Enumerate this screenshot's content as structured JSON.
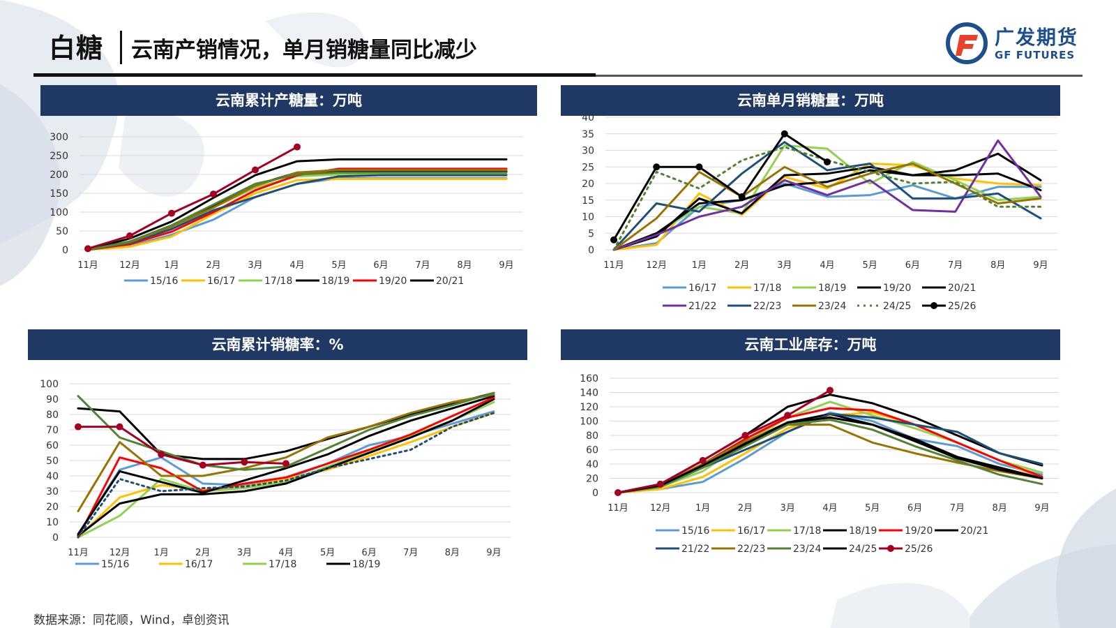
{
  "header": {
    "title": "白糖",
    "subtitle": "云南产销情况，单月销糖量同比减少",
    "logo_cn": "广发期货",
    "logo_en": "GF FUTURES"
  },
  "source": "数据来源：同花顺，Wind，卓创资讯",
  "colors": {
    "header_bg": "#1f3864",
    "s1516": "#5b9bd5",
    "s1617": "#ffc000",
    "s1718": "#92d050",
    "s1819": "#000000",
    "s1920": "#ff0000",
    "s2021": "#000000",
    "s2122": "#7030a0",
    "s2223": "#1f4e79",
    "s2324": "#997300",
    "s2425": "#548235",
    "s2526": "#a50021",
    "s2324_inv": "#548235"
  },
  "chart_data": [
    {
      "id": "production",
      "title": "云南累计产糖量：万吨",
      "type": "line",
      "categories": [
        "11月",
        "12月",
        "1月",
        "2月",
        "3月",
        "4月",
        "5月",
        "6月",
        "7月",
        "8月",
        "9月"
      ],
      "ylim": [
        0,
        300
      ],
      "yticks": [
        0,
        50,
        100,
        150,
        200,
        250,
        300
      ],
      "legend_rows": [
        [
          "15/16",
          "16/17",
          "17/18",
          "18/19",
          "19/20",
          "20/21"
        ]
      ],
      "series": [
        {
          "name": "15/16",
          "color": "#5b9bd5",
          "width": 3,
          "values": [
            0,
            10,
            40,
            80,
            140,
            175,
            190,
            190,
            190,
            190,
            190
          ]
        },
        {
          "name": "16/17",
          "color": "#ffc000",
          "width": 3,
          "values": [
            0,
            8,
            35,
            95,
            150,
            185,
            188,
            188,
            188,
            188,
            188
          ]
        },
        {
          "name": "17/18",
          "color": "#92d050",
          "width": 3,
          "values": [
            0,
            22,
            60,
            112,
            165,
            195,
            200,
            200,
            200,
            200,
            200
          ]
        },
        {
          "name": "18/19",
          "color": "#000000",
          "width": 3,
          "values": [
            0,
            20,
            62,
            115,
            172,
            205,
            208,
            208,
            208,
            208,
            208
          ]
        },
        {
          "name": "19/20",
          "color": "#ff0000",
          "width": 3,
          "values": [
            0,
            15,
            48,
            100,
            158,
            198,
            215,
            215,
            215,
            215,
            215
          ]
        },
        {
          "name": "20/21",
          "color": "#000000",
          "width": 3,
          "values": [
            0,
            30,
            75,
            138,
            198,
            235,
            240,
            240,
            240,
            240,
            240
          ]
        },
        {
          "name": "",
          "color": "#1f4e79",
          "width": 3,
          "values": [
            0,
            18,
            55,
            105,
            140,
            175,
            195,
            198,
            198,
            198,
            198
          ]
        },
        {
          "name": "",
          "color": "#997300",
          "width": 3,
          "values": [
            0,
            20,
            62,
            112,
            170,
            205,
            212,
            212,
            212,
            212,
            212
          ]
        },
        {
          "name": "",
          "color": "#548235",
          "width": 3,
          "values": [
            0,
            22,
            65,
            120,
            175,
            200,
            205,
            205,
            205,
            205,
            205
          ]
        },
        {
          "name": "",
          "color": "#a50021",
          "width": 3,
          "marker": true,
          "values": [
            3,
            37,
            97,
            148,
            212,
            273,
            null,
            null,
            null,
            null,
            null
          ]
        }
      ]
    },
    {
      "id": "monthly-sales",
      "title": "云南单月销糖量：万吨",
      "type": "line",
      "categories": [
        "11月",
        "12月",
        "1月",
        "2月",
        "3月",
        "4月",
        "5月",
        "6月",
        "7月",
        "8月",
        "9月"
      ],
      "ylim": [
        0,
        40
      ],
      "yticks": [
        0,
        5,
        10,
        15,
        20,
        25,
        30,
        35,
        40
      ],
      "legend_rows": [
        [
          "16/17",
          "17/18",
          "18/19",
          "19/20",
          "20/21"
        ],
        [
          "21/22",
          "22/23",
          "23/24",
          "24/25",
          "25/26"
        ]
      ],
      "series": [
        {
          "name": "16/17",
          "color": "#5b9bd5",
          "width": 3,
          "values": [
            0,
            2,
            13,
            15,
            20,
            16,
            16.5,
            19.5,
            15.5,
            19,
            19
          ]
        },
        {
          "name": "17/18",
          "color": "#ffc000",
          "width": 3,
          "values": [
            0,
            1.5,
            17,
            10.5,
            22,
            18.5,
            26,
            25.5,
            21.5,
            20,
            19.5
          ]
        },
        {
          "name": "18/19",
          "color": "#92d050",
          "width": 3,
          "values": [
            0,
            5,
            13,
            11,
            31.5,
            30.5,
            20,
            26.5,
            21,
            15,
            16
          ]
        },
        {
          "name": "19/20",
          "color": "#000000",
          "width": 3,
          "values": [
            0,
            4,
            15.5,
            11,
            22.5,
            23,
            25,
            22.5,
            22.5,
            23,
            18
          ]
        },
        {
          "name": "20/21",
          "color": "#000000",
          "width": 3,
          "values": [
            0,
            5,
            14,
            15,
            19.5,
            20.5,
            24,
            22.5,
            24,
            29,
            21
          ]
        },
        {
          "name": "21/22",
          "color": "#7030a0",
          "width": 3,
          "values": [
            0,
            4.5,
            10,
            13,
            21,
            16.5,
            21,
            12,
            11.5,
            33,
            16
          ]
        },
        {
          "name": "22/23",
          "color": "#1f4e79",
          "width": 3,
          "values": [
            0,
            14,
            11.5,
            23,
            32.5,
            24,
            26,
            15.5,
            15.5,
            17,
            9.5
          ]
        },
        {
          "name": "23/24",
          "color": "#997300",
          "width": 3,
          "values": [
            0,
            9.5,
            23.5,
            16,
            25,
            19,
            23,
            26,
            20,
            14,
            15.5
          ]
        },
        {
          "name": "24/25",
          "color": "#548235",
          "width": 3,
          "dash": "3,6",
          "values": [
            0,
            23.5,
            18.5,
            27,
            31,
            27,
            23.5,
            20,
            20.5,
            13,
            13
          ]
        },
        {
          "name": "25/26",
          "color": "#000000",
          "width": 3,
          "marker": true,
          "values": [
            3,
            25,
            25,
            16,
            35,
            26.5,
            null,
            null,
            null,
            null,
            null
          ]
        }
      ]
    },
    {
      "id": "sales-rate",
      "title": "云南累计销糖率：%",
      "type": "line",
      "categories": [
        "11月",
        "12月",
        "1月",
        "2月",
        "3月",
        "4月",
        "5月",
        "6月",
        "7月",
        "8月",
        "9月"
      ],
      "ylim": [
        0,
        100
      ],
      "yticks": [
        0,
        10,
        20,
        30,
        40,
        50,
        60,
        70,
        80,
        90,
        100
      ],
      "legend_rows": [
        [
          "15/16",
          "16/17",
          "17/18",
          "18/19"
        ]
      ],
      "series": [
        {
          "name": "15/16",
          "color": "#5b9bd5",
          "width": 3,
          "values": [
            2,
            44,
            52,
            35,
            34,
            38,
            48,
            60,
            66,
            74,
            82
          ]
        },
        {
          "name": "16/17",
          "color": "#ffc000",
          "width": 3,
          "values": [
            0,
            26,
            34,
            31,
            33,
            38,
            44,
            53,
            62,
            72,
            81
          ]
        },
        {
          "name": "17/18",
          "color": "#92d050",
          "width": 3,
          "values": [
            0,
            14,
            38,
            30,
            32,
            36,
            46,
            56,
            66,
            76,
            88
          ]
        },
        {
          "name": "18/19",
          "color": "#000000",
          "width": 3,
          "values": [
            1,
            22,
            28,
            28,
            30,
            35,
            45,
            55,
            65,
            76,
            90
          ]
        },
        {
          "name": "",
          "color": "#ff0000",
          "width": 3,
          "values": [
            0,
            52,
            45,
            30,
            35,
            39,
            48,
            57,
            67,
            79,
            91
          ]
        },
        {
          "name": "",
          "color": "#000000",
          "width": 3,
          "values": [
            84,
            82,
            54,
            51,
            51,
            56,
            64,
            72,
            80,
            87,
            94
          ]
        },
        {
          "name": "",
          "color": "#000000",
          "width": 3,
          "values": [
            2,
            43,
            36,
            29,
            37,
            45,
            54,
            66,
            76,
            84,
            92
          ]
        },
        {
          "name": "",
          "color": "#997300",
          "width": 3,
          "values": [
            17,
            62,
            40,
            40,
            45,
            52,
            65,
            72,
            81,
            88,
            93
          ]
        },
        {
          "name": "",
          "color": "#548235",
          "width": 3,
          "values": [
            92,
            65,
            56,
            47,
            44,
            46,
            58,
            70,
            79,
            86,
            94
          ]
        },
        {
          "name": "",
          "color": "#1f4e79",
          "width": 3,
          "dash": "3,5",
          "values": [
            0,
            38,
            30,
            32,
            33,
            37,
            45,
            51,
            57,
            72,
            81
          ]
        },
        {
          "name": "",
          "color": "#a50021",
          "width": 3,
          "marker": true,
          "values": [
            72,
            72,
            54,
            47,
            49,
            48,
            null,
            null,
            null,
            null,
            null
          ]
        }
      ]
    },
    {
      "id": "inventory",
      "title": "云南工业库存：万吨",
      "type": "line",
      "categories": [
        "11月",
        "12月",
        "1月",
        "2月",
        "3月",
        "4月",
        "5月",
        "6月",
        "7月",
        "8月",
        "9月"
      ],
      "ylim": [
        0,
        160
      ],
      "yticks": [
        0,
        20,
        40,
        60,
        80,
        100,
        120,
        140,
        160
      ],
      "legend_rows": [
        [
          "15/16",
          "16/17",
          "17/18",
          "18/19",
          "19/20",
          "20/21"
        ],
        [
          "21/22",
          "22/23",
          "23/24",
          "24/25",
          "25/26"
        ]
      ],
      "series": [
        {
          "name": "15/16",
          "color": "#5b9bd5",
          "width": 3,
          "values": [
            0,
            5,
            15,
            48,
            85,
            112,
            100,
            75,
            65,
            40,
            25
          ]
        },
        {
          "name": "16/17",
          "color": "#ffc000",
          "width": 3,
          "values": [
            0,
            5,
            22,
            55,
            90,
            108,
            112,
            95,
            70,
            45,
            20
          ]
        },
        {
          "name": "17/18",
          "color": "#92d050",
          "width": 3,
          "values": [
            0,
            8,
            30,
            70,
            105,
            127,
            108,
            90,
            70,
            45,
            28
          ]
        },
        {
          "name": "18/19",
          "color": "#000000",
          "width": 3,
          "values": [
            0,
            10,
            35,
            70,
            98,
            110,
            95,
            75,
            50,
            35,
            20
          ]
        },
        {
          "name": "19/20",
          "color": "#ff0000",
          "width": 3,
          "values": [
            0,
            10,
            40,
            75,
            105,
            118,
            115,
            95,
            70,
            45,
            22
          ]
        },
        {
          "name": "20/21",
          "color": "#000000",
          "width": 3,
          "values": [
            0,
            12,
            45,
            80,
            120,
            137,
            125,
            105,
            80,
            55,
            38
          ]
        },
        {
          "name": "21/22",
          "color": "#1f4e79",
          "width": 3,
          "values": [
            0,
            8,
            35,
            60,
            85,
            110,
            105,
            95,
            85,
            55,
            40
          ]
        },
        {
          "name": "22/23",
          "color": "#997300",
          "width": 3,
          "values": [
            0,
            10,
            40,
            72,
            95,
            95,
            70,
            55,
            42,
            30,
            20
          ]
        },
        {
          "name": "23/24",
          "color": "#548235",
          "width": 3,
          "values": [
            0,
            8,
            35,
            65,
            95,
            102,
            88,
            65,
            45,
            25,
            12
          ]
        },
        {
          "name": "24/25",
          "color": "#000000",
          "width": 3,
          "values": [
            0,
            10,
            38,
            68,
            98,
            105,
            95,
            72,
            48,
            32,
            20
          ]
        },
        {
          "name": "25/26",
          "color": "#a50021",
          "width": 3,
          "marker": true,
          "values": [
            0,
            12,
            45,
            80,
            108,
            143,
            null,
            null,
            null,
            null,
            null
          ]
        }
      ]
    }
  ]
}
